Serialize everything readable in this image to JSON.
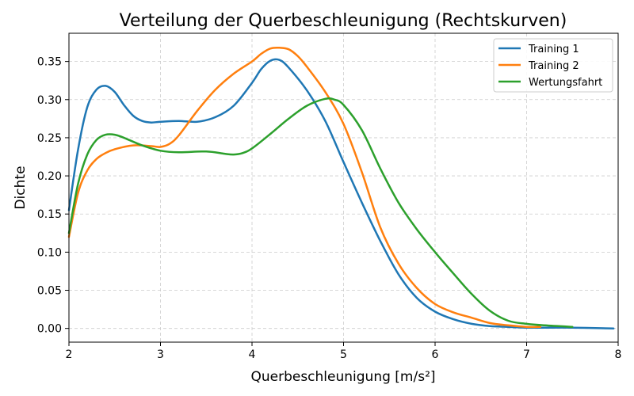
{
  "chart_data": {
    "type": "line",
    "title": "Verteilung der Querbeschleunigung (Rechtskurven)",
    "xlabel": "Querbeschleunigung [m/s²]",
    "ylabel": "Dichte",
    "xlim": [
      2,
      8
    ],
    "ylim": [
      -0.018,
      0.387
    ],
    "x_ticks": [
      2,
      3,
      4,
      5,
      6,
      7,
      8
    ],
    "x_tick_labels": [
      "2",
      "3",
      "4",
      "5",
      "6",
      "7",
      "8"
    ],
    "y_ticks": [
      0.0,
      0.05,
      0.1,
      0.15,
      0.2,
      0.25,
      0.3,
      0.35
    ],
    "y_tick_labels": [
      "0.00",
      "0.05",
      "0.10",
      "0.15",
      "0.20",
      "0.25",
      "0.30",
      "0.35"
    ],
    "grid": true,
    "legend_position": "top-right",
    "series": [
      {
        "name": "Training 1",
        "color": "#1f77b4",
        "x": [
          2.0,
          2.1,
          2.2,
          2.3,
          2.4,
          2.5,
          2.6,
          2.7,
          2.8,
          2.9,
          3.0,
          3.2,
          3.4,
          3.6,
          3.8,
          4.0,
          4.1,
          4.2,
          4.3,
          4.4,
          4.6,
          4.8,
          5.0,
          5.2,
          5.4,
          5.6,
          5.8,
          6.0,
          6.2,
          6.4,
          6.6,
          6.8,
          7.0,
          7.5,
          7.95
        ],
        "y": [
          0.155,
          0.235,
          0.29,
          0.313,
          0.318,
          0.31,
          0.293,
          0.279,
          0.272,
          0.27,
          0.271,
          0.272,
          0.271,
          0.277,
          0.292,
          0.322,
          0.34,
          0.351,
          0.352,
          0.342,
          0.312,
          0.272,
          0.218,
          0.165,
          0.115,
          0.071,
          0.04,
          0.022,
          0.012,
          0.006,
          0.003,
          0.002,
          0.001,
          0.001,
          0.0
        ]
      },
      {
        "name": "Training 2",
        "color": "#ff7f0e",
        "x": [
          2.0,
          2.1,
          2.2,
          2.3,
          2.4,
          2.5,
          2.7,
          2.9,
          3.0,
          3.1,
          3.2,
          3.4,
          3.6,
          3.8,
          4.0,
          4.1,
          4.2,
          4.3,
          4.4,
          4.5,
          4.6,
          4.8,
          5.0,
          5.2,
          5.4,
          5.6,
          5.8,
          6.0,
          6.2,
          6.4,
          6.6,
          6.8,
          7.0,
          7.15
        ],
        "y": [
          0.12,
          0.178,
          0.207,
          0.222,
          0.23,
          0.235,
          0.24,
          0.239,
          0.238,
          0.242,
          0.253,
          0.285,
          0.313,
          0.334,
          0.35,
          0.36,
          0.367,
          0.368,
          0.366,
          0.357,
          0.343,
          0.31,
          0.268,
          0.205,
          0.133,
          0.085,
          0.053,
          0.032,
          0.021,
          0.014,
          0.007,
          0.004,
          0.002,
          0.002
        ]
      },
      {
        "name": "Wertungsfahrt",
        "color": "#2ca02c",
        "x": [
          2.0,
          2.1,
          2.2,
          2.3,
          2.4,
          2.5,
          2.6,
          2.8,
          3.0,
          3.2,
          3.5,
          3.7,
          3.8,
          3.9,
          4.0,
          4.2,
          4.4,
          4.6,
          4.8,
          4.9,
          5.0,
          5.2,
          5.4,
          5.6,
          5.8,
          6.0,
          6.2,
          6.4,
          6.6,
          6.8,
          7.0,
          7.2,
          7.5
        ],
        "y": [
          0.125,
          0.19,
          0.228,
          0.247,
          0.254,
          0.254,
          0.25,
          0.24,
          0.233,
          0.231,
          0.232,
          0.229,
          0.228,
          0.23,
          0.236,
          0.255,
          0.275,
          0.292,
          0.301,
          0.3,
          0.293,
          0.26,
          0.21,
          0.165,
          0.13,
          0.1,
          0.072,
          0.045,
          0.023,
          0.01,
          0.006,
          0.004,
          0.002
        ]
      }
    ]
  }
}
